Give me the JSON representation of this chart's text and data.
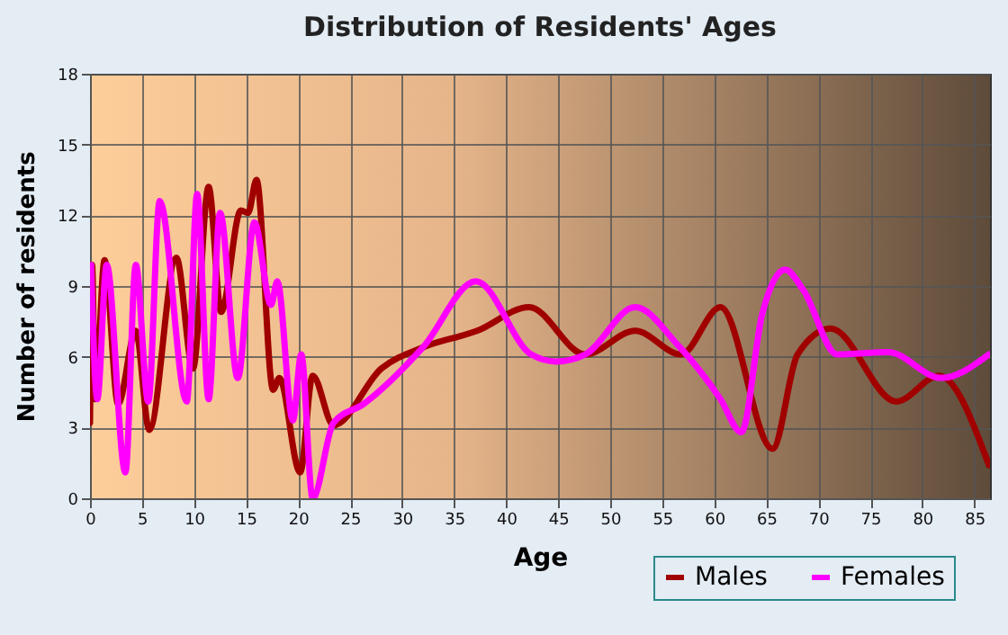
{
  "chart_data": {
    "type": "line",
    "title": "Distribution of Residents' Ages",
    "xlabel": "Age",
    "ylabel": "Number of residents",
    "xlim": [
      0,
      86.5
    ],
    "xticks": [
      0,
      5,
      10,
      15,
      20,
      25,
      30,
      35,
      40,
      45,
      50,
      55,
      60,
      65,
      70,
      75,
      80,
      85
    ],
    "ylim": [
      0,
      18
    ],
    "yticks": [
      0,
      3,
      6,
      9,
      12,
      15,
      18
    ],
    "grid": true,
    "legend": "bottom right",
    "series": [
      {
        "name": "Males",
        "color": "#a00000",
        "x": [
          0,
          0.2,
          0.5,
          1.4,
          2.7,
          4.4,
          5.7,
          8.3,
          9.9,
          11.4,
          12.6,
          14.5,
          15.2,
          16,
          17.6,
          18.2,
          20.2,
          21.4,
          23.4,
          28,
          32,
          37.2,
          42.2,
          47.6,
          52.4,
          56.8,
          60.6,
          65.6,
          68,
          71.2,
          77.5,
          81.6,
          86.4
        ],
        "values": [
          3.2,
          9.9,
          4.2,
          10.1,
          4,
          7.1,
          2.9,
          10.2,
          5.5,
          13.2,
          7.9,
          12.2,
          12.1,
          13.5,
          4.6,
          5.1,
          1.1,
          5.2,
          3.1,
          5.5,
          6.4,
          7.1,
          8.1,
          6.1,
          7.1,
          6.1,
          8.1,
          2.1,
          6.1,
          7.2,
          4.1,
          5.2,
          1.4
        ]
      },
      {
        "name": "Females",
        "color": "#ff00ff",
        "x": [
          0.1,
          0.7,
          1.6,
          3.4,
          4.4,
          5.6,
          6.7,
          9.3,
          10.3,
          11.4,
          12.5,
          14.2,
          15.8,
          17.4,
          18,
          19.5,
          20.3,
          21.4,
          23.4,
          26.3,
          32,
          37.1,
          42.4,
          44.8,
          47.6,
          52.4,
          56.5,
          60.6,
          62.6,
          64.6,
          66.8,
          68.6,
          71.8,
          76.7,
          81.8,
          86.4
        ],
        "values": [
          9.9,
          4.2,
          9.9,
          1.1,
          9.9,
          4.1,
          12.6,
          4.1,
          12.9,
          4.2,
          12.1,
          5.1,
          11.7,
          8.2,
          9.2,
          3.3,
          6.1,
          0,
          3.2,
          4,
          6.4,
          9.2,
          6.1,
          5.8,
          6.1,
          8.1,
          6.5,
          4.2,
          2.8,
          7.8,
          9.7,
          8.8,
          6.1,
          6.2,
          5.1,
          6.1
        ]
      }
    ]
  }
}
